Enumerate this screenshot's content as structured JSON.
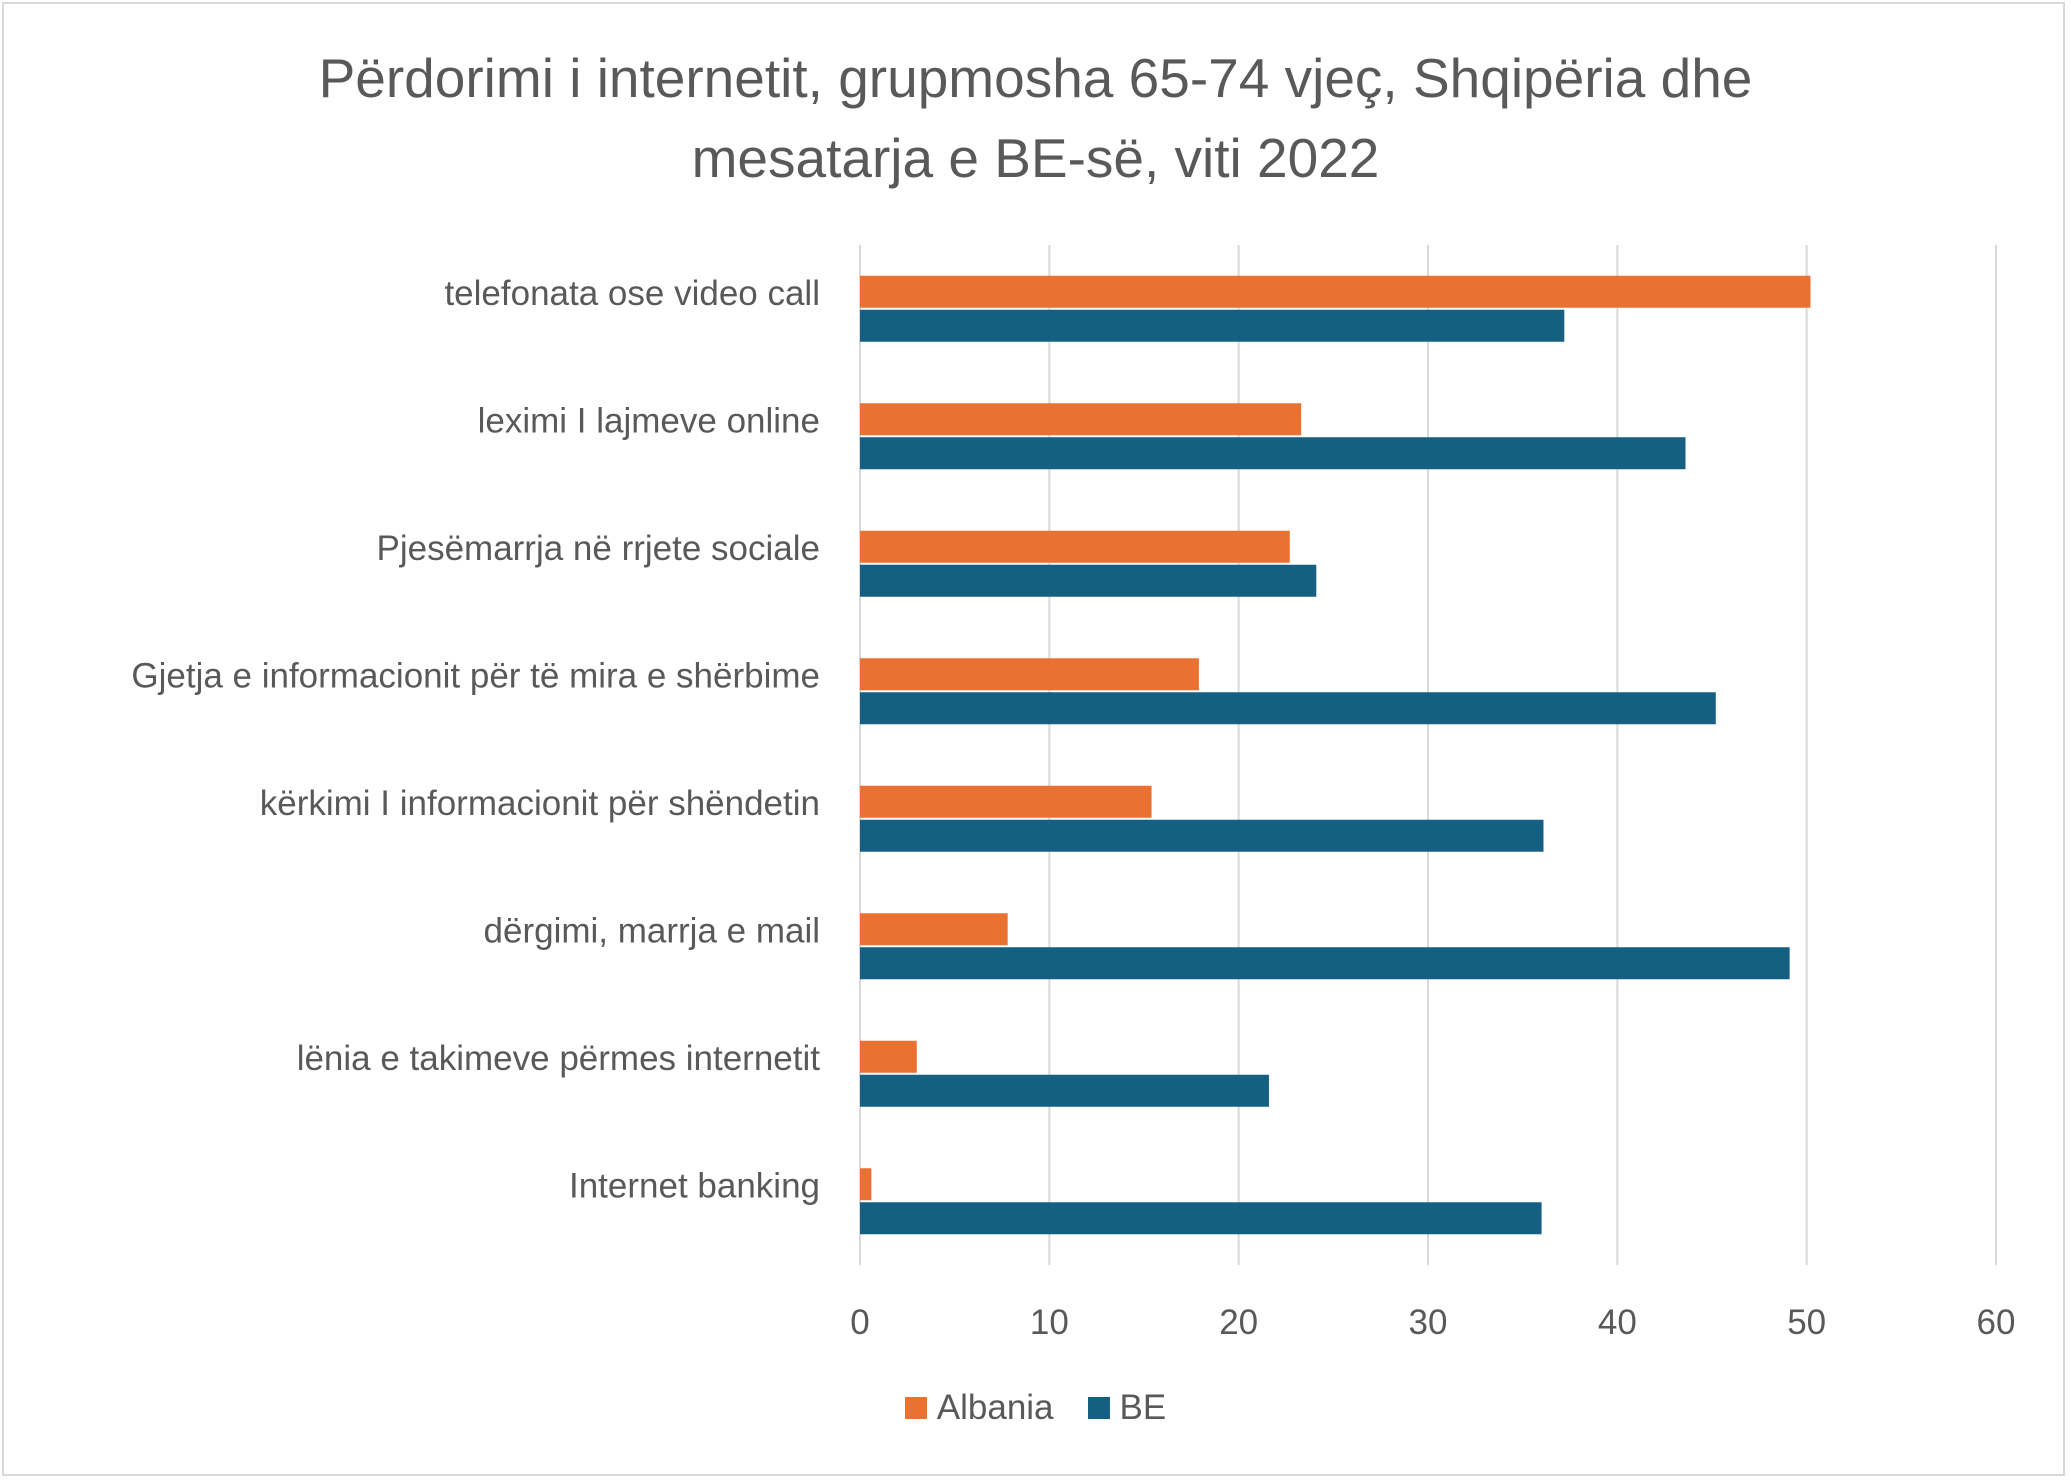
{
  "chart_data": {
    "type": "bar",
    "orientation": "horizontal",
    "title": "Përdorimi i internetit, grupmosha 65-74 vjeç, Shqipëria dhe mesatarja e BE-së, viti 2022",
    "title_lines": [
      "Përdorimi i internetit, grupmosha 65-74 vjeç, Shqipëria dhe",
      "mesatarja e BE-së, viti 2022"
    ],
    "xlabel": "",
    "ylabel": "",
    "categories": [
      "telefonata ose video call",
      "leximi I lajmeve online",
      "Pjesëmarrja në rrjete sociale",
      "Gjetja e informacionit për të mira e shërbime",
      "kërkimi I informacionit për shëndetin",
      "dërgimi, marrja e mail",
      "lënia e takimeve përmes internetit",
      "Internet banking"
    ],
    "series": [
      {
        "name": "Albania",
        "color": "#E97132",
        "values": [
          50.2,
          23.3,
          22.7,
          17.9,
          15.4,
          7.8,
          3.0,
          0.6
        ]
      },
      {
        "name": "BE",
        "color": "#156082",
        "values": [
          37.2,
          43.6,
          24.1,
          45.2,
          36.1,
          49.1,
          21.6,
          36.0
        ]
      }
    ],
    "xlim": [
      0,
      60
    ],
    "xticks": [
      "0",
      "10",
      "20",
      "30",
      "40",
      "50",
      "60"
    ],
    "grid": "vertical",
    "legend": "bottom"
  }
}
